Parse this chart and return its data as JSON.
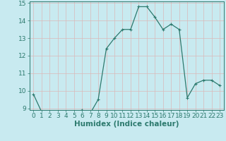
{
  "x": [
    0,
    1,
    2,
    3,
    4,
    5,
    6,
    7,
    8,
    9,
    10,
    11,
    12,
    13,
    14,
    15,
    16,
    17,
    18,
    19,
    20,
    21,
    22,
    23
  ],
  "y": [
    9.8,
    8.8,
    8.6,
    8.8,
    8.8,
    8.7,
    8.9,
    8.7,
    9.5,
    12.4,
    13.0,
    13.5,
    13.5,
    14.8,
    14.8,
    14.2,
    13.5,
    13.8,
    13.5,
    9.6,
    10.4,
    10.6,
    10.6,
    10.3
  ],
  "line_color": "#2d7a6e",
  "marker": "+",
  "marker_size": 3,
  "marker_lw": 0.8,
  "line_width": 0.9,
  "bg_color": "#c8eaf0",
  "grid_color": "#dab8b8",
  "xlabel": "Humidex (Indice chaleur)",
  "ylim": [
    9,
    15
  ],
  "xlim": [
    -0.5,
    23.5
  ],
  "yticks": [
    9,
    10,
    11,
    12,
    13,
    14,
    15
  ],
  "xticks": [
    0,
    1,
    2,
    3,
    4,
    5,
    6,
    7,
    8,
    9,
    10,
    11,
    12,
    13,
    14,
    15,
    16,
    17,
    18,
    19,
    20,
    21,
    22,
    23
  ],
  "tick_color": "#2d7a6e",
  "label_color": "#2d7a6e",
  "tick_fontsize": 6.5,
  "xlabel_fontsize": 7.5
}
